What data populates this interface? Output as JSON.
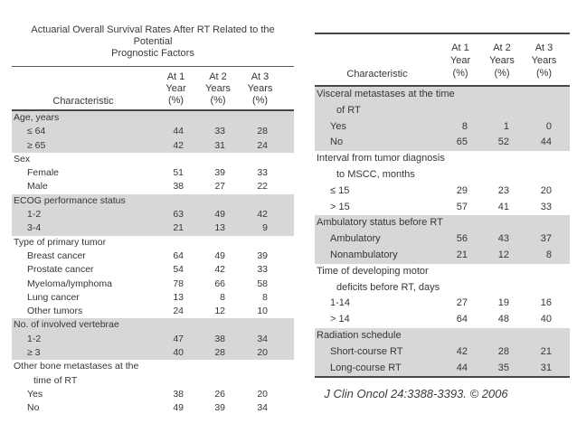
{
  "colors": {
    "background": "#ffffff",
    "row_shade": "#d7d7d7",
    "rule": "#474747",
    "text": "#363636"
  },
  "left_table": {
    "title_lines": [
      "Actuarial Overall Survival Rates After RT Related to the Potential",
      "Prognostic Factors"
    ],
    "header": {
      "characteristic": "Characteristic",
      "value_columns": [
        [
          "At 1",
          "Year",
          "(%)"
        ],
        [
          "At 2",
          "Years",
          "(%)"
        ],
        [
          "At 3",
          "Years",
          "(%)"
        ]
      ]
    },
    "groups": [
      {
        "label_lines": [
          "Age, years"
        ],
        "shaded": true,
        "rows": [
          {
            "label": "≤ 64",
            "values": [
              44,
              33,
              28
            ]
          },
          {
            "label": "≥ 65",
            "values": [
              42,
              31,
              24
            ]
          }
        ]
      },
      {
        "label_lines": [
          "Sex"
        ],
        "shaded": false,
        "rows": [
          {
            "label": "Female",
            "values": [
              51,
              39,
              33
            ]
          },
          {
            "label": "Male",
            "values": [
              38,
              27,
              22
            ]
          }
        ]
      },
      {
        "label_lines": [
          "ECOG performance status"
        ],
        "shaded": true,
        "rows": [
          {
            "label": "1-2",
            "values": [
              63,
              49,
              42
            ]
          },
          {
            "label": "3-4",
            "values": [
              21,
              13,
              9
            ]
          }
        ]
      },
      {
        "label_lines": [
          "Type of primary tumor"
        ],
        "shaded": false,
        "rows": [
          {
            "label": "Breast cancer",
            "values": [
              64,
              49,
              39
            ]
          },
          {
            "label": "Prostate cancer",
            "values": [
              54,
              42,
              33
            ]
          },
          {
            "label": "Myeloma/lymphoma",
            "values": [
              78,
              66,
              58
            ]
          },
          {
            "label": "Lung cancer",
            "values": [
              13,
              8,
              8
            ]
          },
          {
            "label": "Other tumors",
            "values": [
              24,
              12,
              10
            ]
          }
        ]
      },
      {
        "label_lines": [
          "No. of involved vertebrae"
        ],
        "shaded": true,
        "rows": [
          {
            "label": "1-2",
            "values": [
              47,
              38,
              34
            ]
          },
          {
            "label": "≥ 3",
            "values": [
              40,
              28,
              20
            ]
          }
        ]
      },
      {
        "label_lines": [
          "Other bone metastases at the",
          "time of RT"
        ],
        "shaded": false,
        "rows": [
          {
            "label": "Yes",
            "values": [
              38,
              26,
              20
            ]
          },
          {
            "label": "No",
            "values": [
              49,
              39,
              34
            ]
          }
        ]
      }
    ]
  },
  "right_table": {
    "header": {
      "characteristic": "Characteristic",
      "value_columns": [
        [
          "At 1",
          "Year",
          "(%)"
        ],
        [
          "At 2",
          "Years",
          "(%)"
        ],
        [
          "At 3",
          "Years",
          "(%)"
        ]
      ]
    },
    "groups": [
      {
        "label_lines": [
          "Visceral metastases at the time",
          "of RT"
        ],
        "shaded": true,
        "rows": [
          {
            "label": "Yes",
            "values": [
              8,
              1,
              0
            ]
          },
          {
            "label": "No",
            "values": [
              65,
              52,
              44
            ]
          }
        ]
      },
      {
        "label_lines": [
          "Interval from tumor diagnosis",
          "to MSCC, months"
        ],
        "shaded": false,
        "rows": [
          {
            "label": "≤ 15",
            "values": [
              29,
              23,
              20
            ]
          },
          {
            "label": "> 15",
            "values": [
              57,
              41,
              33
            ]
          }
        ]
      },
      {
        "label_lines": [
          "Ambulatory status before RT"
        ],
        "shaded": true,
        "rows": [
          {
            "label": "Ambulatory",
            "values": [
              56,
              43,
              37
            ]
          },
          {
            "label": "Nonambulatory",
            "values": [
              21,
              12,
              8
            ]
          }
        ]
      },
      {
        "label_lines": [
          "Time of developing motor",
          "deficits before RT, days"
        ],
        "shaded": false,
        "rows": [
          {
            "label": "1-14",
            "values": [
              27,
              19,
              16
            ]
          },
          {
            "label": "> 14",
            "values": [
              64,
              48,
              40
            ]
          }
        ]
      },
      {
        "label_lines": [
          "Radiation schedule"
        ],
        "shaded": true,
        "rows": [
          {
            "label": "Short-course RT",
            "values": [
              42,
              28,
              21
            ]
          },
          {
            "label": "Long-course RT",
            "values": [
              44,
              35,
              31
            ]
          }
        ]
      }
    ],
    "citation": "J Clin Oncol 24:3388-3393. © 2006"
  }
}
